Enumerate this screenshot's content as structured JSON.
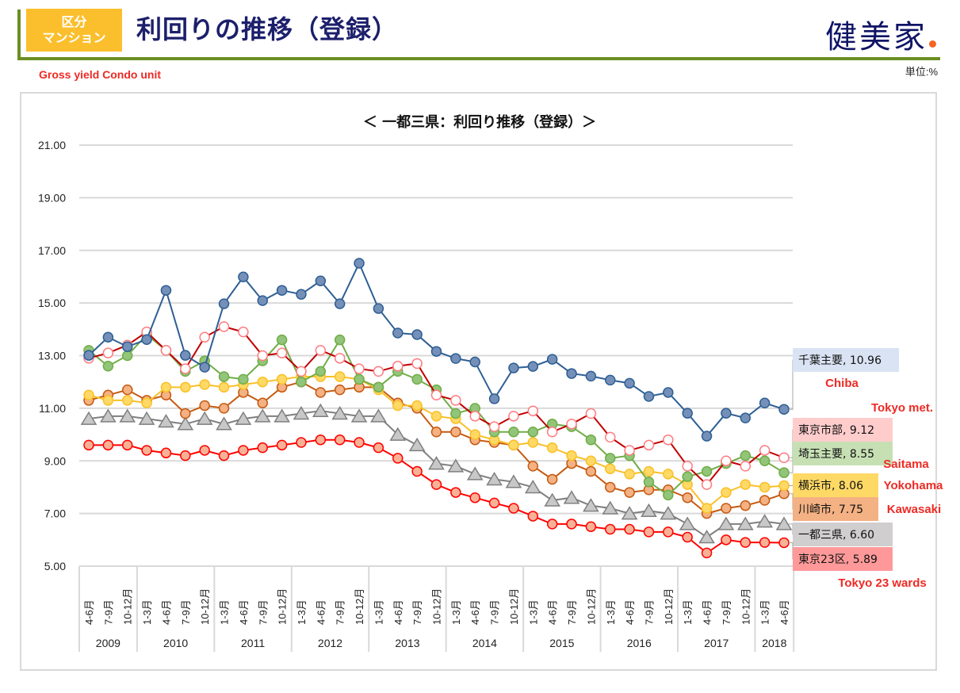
{
  "header": {
    "tag_line1": "区分",
    "tag_line2": "マンション",
    "title": "利回りの推移（登録）",
    "logo": "健美家",
    "subtitle": "Gross yield Condo unit",
    "unit": "単位:%"
  },
  "colors": {
    "accent_green": "#6b8e23",
    "tag_yellow": "#fbbf2d",
    "title_navy": "#1c1f6b",
    "logo_orange_dot": "#f26522",
    "english_label_red": "#ee2a24"
  },
  "chart_data": {
    "type": "line",
    "title": "＜ 一都三県：利回り推移（登録）＞",
    "xlabel": "",
    "ylabel": "",
    "ylim": [
      5,
      21
    ],
    "yticks": [
      "5.00",
      "7.00",
      "9.00",
      "11.00",
      "13.00",
      "15.00",
      "17.00",
      "19.00",
      "21.00"
    ],
    "grid": true,
    "x": [
      "4-6月",
      "7-9月",
      "10-12月",
      "1-3月",
      "4-6月",
      "7-9月",
      "10-12月",
      "1-3月",
      "4-6月",
      "7-9月",
      "10-12月",
      "1-3月",
      "4-6月",
      "7-9月",
      "10-12月",
      "1-3月",
      "4-6月",
      "7-9月",
      "10-12月",
      "1-3月",
      "4-6月",
      "7-9月",
      "10-12月",
      "1-3月",
      "4-6月",
      "7-9月",
      "10-12月",
      "1-3月",
      "4-6月",
      "7-9月",
      "10-12月",
      "1-3月",
      "4-6月",
      "7-9月",
      "10-12月",
      "1-3月",
      "4-6月"
    ],
    "year_groups": [
      {
        "year": "2009",
        "count": 3
      },
      {
        "year": "2010",
        "count": 4
      },
      {
        "year": "2011",
        "count": 4
      },
      {
        "year": "2012",
        "count": 4
      },
      {
        "year": "2013",
        "count": 4
      },
      {
        "year": "2014",
        "count": 4
      },
      {
        "year": "2015",
        "count": 4
      },
      {
        "year": "2016",
        "count": 4
      },
      {
        "year": "2017",
        "count": 4
      },
      {
        "year": "2018",
        "count": 2
      }
    ],
    "series": [
      {
        "name": "千葉主要",
        "english": "Chiba",
        "last_label": "千葉主要, 10.96",
        "color": "#2e5f94",
        "fill": "#7590b8",
        "marker": "circle",
        "label_bg": "#dae3f3",
        "values": [
          13.01,
          13.7,
          13.34,
          13.61,
          15.48,
          13.01,
          12.56,
          14.97,
          15.99,
          15.09,
          15.48,
          15.33,
          15.84,
          14.97,
          16.51,
          14.79,
          13.86,
          13.8,
          13.16,
          12.89,
          12.76,
          11.36,
          12.53,
          12.59,
          12.86,
          12.32,
          12.22,
          12.07,
          11.95,
          11.45,
          11.6,
          10.81,
          9.94,
          10.81,
          10.63,
          11.2,
          10.96
        ]
      },
      {
        "name": "東京市部",
        "english": "Tokyo met.",
        "last_label": "東京市部, 9.12",
        "color": "#c00000",
        "fill": "#ffffff",
        "stroke": "#ff7c80",
        "marker": "hollow",
        "label_bg": "#ffcccc",
        "values": [
          12.9,
          13.1,
          13.4,
          13.9,
          13.2,
          12.5,
          13.7,
          14.1,
          13.9,
          13.0,
          13.1,
          12.4,
          13.2,
          12.9,
          12.5,
          12.4,
          12.6,
          12.7,
          11.5,
          11.3,
          10.7,
          10.3,
          10.7,
          10.9,
          10.1,
          10.4,
          10.8,
          9.9,
          9.4,
          9.6,
          9.8,
          8.8,
          8.1,
          9.0,
          8.8,
          9.4,
          9.12
        ]
      },
      {
        "name": "埼玉主要",
        "english": "Saitama",
        "last_label": "埼玉主要, 8.55",
        "color": "#70ad47",
        "fill": "#92c47a",
        "marker": "circle",
        "label_bg": "#c6e0b4",
        "values": [
          13.2,
          12.6,
          13.0,
          13.8,
          13.2,
          12.4,
          12.8,
          12.2,
          12.1,
          12.8,
          13.6,
          12.0,
          12.4,
          13.6,
          12.1,
          11.8,
          12.4,
          12.1,
          11.7,
          10.8,
          11.0,
          10.1,
          10.1,
          10.1,
          10.4,
          10.3,
          9.8,
          9.1,
          9.2,
          8.2,
          7.7,
          8.4,
          8.6,
          8.9,
          9.2,
          9.0,
          8.55
        ]
      },
      {
        "name": "横浜市",
        "english": "Yokohama",
        "last_label": "横浜市, 8.06",
        "color": "#f9c028",
        "fill": "#ffd966",
        "marker": "circle",
        "label_bg": "#ffd966",
        "values": [
          11.5,
          11.3,
          11.3,
          11.2,
          11.8,
          11.8,
          11.9,
          11.8,
          11.9,
          12.0,
          12.1,
          12.2,
          12.2,
          12.2,
          12.1,
          11.7,
          11.1,
          11.1,
          10.7,
          10.6,
          10.0,
          9.8,
          9.6,
          9.7,
          9.5,
          9.2,
          9.0,
          8.7,
          8.5,
          8.6,
          8.5,
          8.1,
          7.2,
          7.8,
          8.1,
          8.0,
          8.06
        ]
      },
      {
        "name": "川崎市",
        "english": "Kawasaki",
        "last_label": "川崎市, 7.75",
        "color": "#c55a11",
        "fill": "#f4b183",
        "marker": "circle",
        "label_bg": "#f4b183",
        "values": [
          11.3,
          11.5,
          11.7,
          11.3,
          11.5,
          10.8,
          11.1,
          11.0,
          11.6,
          11.2,
          11.8,
          12.0,
          11.6,
          11.7,
          11.8,
          11.8,
          11.2,
          11.0,
          10.1,
          10.1,
          9.8,
          9.7,
          9.6,
          8.8,
          8.3,
          8.9,
          8.6,
          8.0,
          7.8,
          7.9,
          7.9,
          7.6,
          7.0,
          7.2,
          7.3,
          7.5,
          7.75
        ]
      },
      {
        "name": "一都三県",
        "english": "",
        "last_label": "一都三県, 6.60",
        "color": "#7f7f7f",
        "fill": "#c8c8c8",
        "marker": "triangle",
        "label_bg": "#d0cece",
        "values": [
          10.6,
          10.7,
          10.7,
          10.6,
          10.5,
          10.4,
          10.6,
          10.4,
          10.6,
          10.7,
          10.7,
          10.8,
          10.9,
          10.8,
          10.7,
          10.7,
          10.0,
          9.6,
          8.9,
          8.8,
          8.5,
          8.3,
          8.2,
          8.0,
          7.5,
          7.6,
          7.3,
          7.2,
          7.0,
          7.1,
          7.0,
          6.6,
          6.1,
          6.6,
          6.6,
          6.7,
          6.6
        ]
      },
      {
        "name": "東京23区",
        "english": "Tokyo 23 wards",
        "last_label": "東京23区, 5.89",
        "color": "#ff0000",
        "fill": "#f8b195",
        "marker": "circle",
        "label_bg": "#ff9999",
        "values": [
          9.6,
          9.6,
          9.6,
          9.4,
          9.3,
          9.2,
          9.4,
          9.2,
          9.4,
          9.5,
          9.6,
          9.7,
          9.8,
          9.8,
          9.7,
          9.5,
          9.1,
          8.6,
          8.1,
          7.8,
          7.6,
          7.4,
          7.2,
          6.9,
          6.6,
          6.6,
          6.5,
          6.4,
          6.4,
          6.3,
          6.3,
          6.1,
          5.5,
          6.0,
          5.9,
          5.9,
          5.89
        ]
      }
    ],
    "legend": "right-end data labels"
  }
}
